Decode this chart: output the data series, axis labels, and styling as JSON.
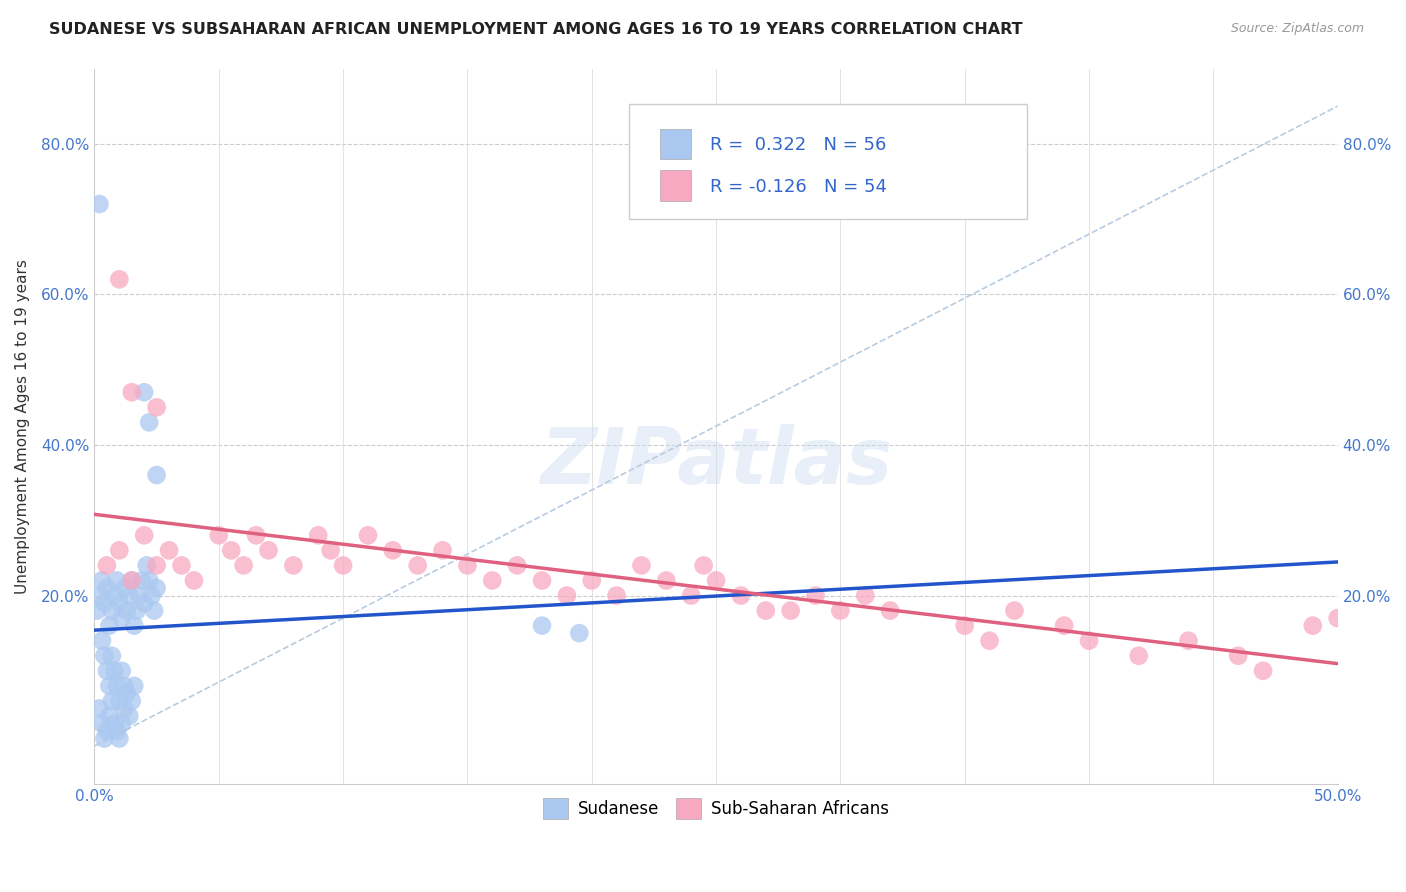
{
  "title": "SUDANESE VS SUBSAHARAN AFRICAN UNEMPLOYMENT AMONG AGES 16 TO 19 YEARS CORRELATION CHART",
  "source": "Source: ZipAtlas.com",
  "ylabel": "Unemployment Among Ages 16 to 19 years",
  "xmin": 0.0,
  "xmax": 0.5,
  "ymin": -0.05,
  "ymax": 0.9,
  "sudanese_color": "#aac8f0",
  "subsaharan_color": "#f8a8c0",
  "sudanese_line_color": "#2255cc",
  "subsaharan_line_color": "#e06080",
  "diagonal_line_color": "#b8cce0",
  "R_sudanese": 0.322,
  "N_sudanese": 56,
  "R_subsaharan": -0.126,
  "N_subsaharan": 54,
  "legend_label_1": "Sudanese",
  "legend_label_2": "Sub-Saharan Africans",
  "sudanese_x": [
    0.001,
    0.002,
    0.003,
    0.004,
    0.005,
    0.006,
    0.007,
    0.008,
    0.009,
    0.01,
    0.011,
    0.012,
    0.013,
    0.014,
    0.015,
    0.016,
    0.017,
    0.018,
    0.019,
    0.02,
    0.021,
    0.022,
    0.023,
    0.024,
    0.025,
    0.003,
    0.004,
    0.005,
    0.006,
    0.007,
    0.008,
    0.009,
    0.01,
    0.011,
    0.012,
    0.002,
    0.003,
    0.004,
    0.005,
    0.006,
    0.007,
    0.008,
    0.009,
    0.01,
    0.011,
    0.012,
    0.013,
    0.014,
    0.015,
    0.016,
    0.002,
    0.18,
    0.195,
    0.02,
    0.022,
    0.025
  ],
  "sudanese_y": [
    0.18,
    0.2,
    0.22,
    0.19,
    0.21,
    0.16,
    0.18,
    0.2,
    0.22,
    0.19,
    0.17,
    0.21,
    0.18,
    0.2,
    0.22,
    0.16,
    0.18,
    0.2,
    0.22,
    0.19,
    0.24,
    0.22,
    0.2,
    0.18,
    0.21,
    0.14,
    0.12,
    0.1,
    0.08,
    0.12,
    0.1,
    0.08,
    0.06,
    0.1,
    0.08,
    0.05,
    0.03,
    0.01,
    0.02,
    0.04,
    0.06,
    0.03,
    0.02,
    0.01,
    0.03,
    0.05,
    0.07,
    0.04,
    0.06,
    0.08,
    0.72,
    0.16,
    0.15,
    0.47,
    0.43,
    0.36
  ],
  "subsaharan_x": [
    0.005,
    0.01,
    0.015,
    0.02,
    0.025,
    0.03,
    0.035,
    0.04,
    0.05,
    0.055,
    0.06,
    0.065,
    0.07,
    0.08,
    0.09,
    0.095,
    0.1,
    0.11,
    0.12,
    0.13,
    0.14,
    0.15,
    0.16,
    0.17,
    0.18,
    0.19,
    0.2,
    0.21,
    0.22,
    0.23,
    0.24,
    0.25,
    0.26,
    0.27,
    0.28,
    0.29,
    0.3,
    0.31,
    0.32,
    0.35,
    0.36,
    0.37,
    0.39,
    0.4,
    0.42,
    0.44,
    0.46,
    0.47,
    0.49,
    0.5,
    0.01,
    0.015,
    0.025,
    0.245
  ],
  "subsaharan_y": [
    0.24,
    0.26,
    0.22,
    0.28,
    0.24,
    0.26,
    0.24,
    0.22,
    0.28,
    0.26,
    0.24,
    0.28,
    0.26,
    0.24,
    0.28,
    0.26,
    0.24,
    0.28,
    0.26,
    0.24,
    0.26,
    0.24,
    0.22,
    0.24,
    0.22,
    0.2,
    0.22,
    0.2,
    0.24,
    0.22,
    0.2,
    0.22,
    0.2,
    0.18,
    0.18,
    0.2,
    0.18,
    0.2,
    0.18,
    0.16,
    0.14,
    0.18,
    0.16,
    0.14,
    0.12,
    0.14,
    0.12,
    0.1,
    0.16,
    0.17,
    0.62,
    0.47,
    0.45,
    0.24
  ]
}
